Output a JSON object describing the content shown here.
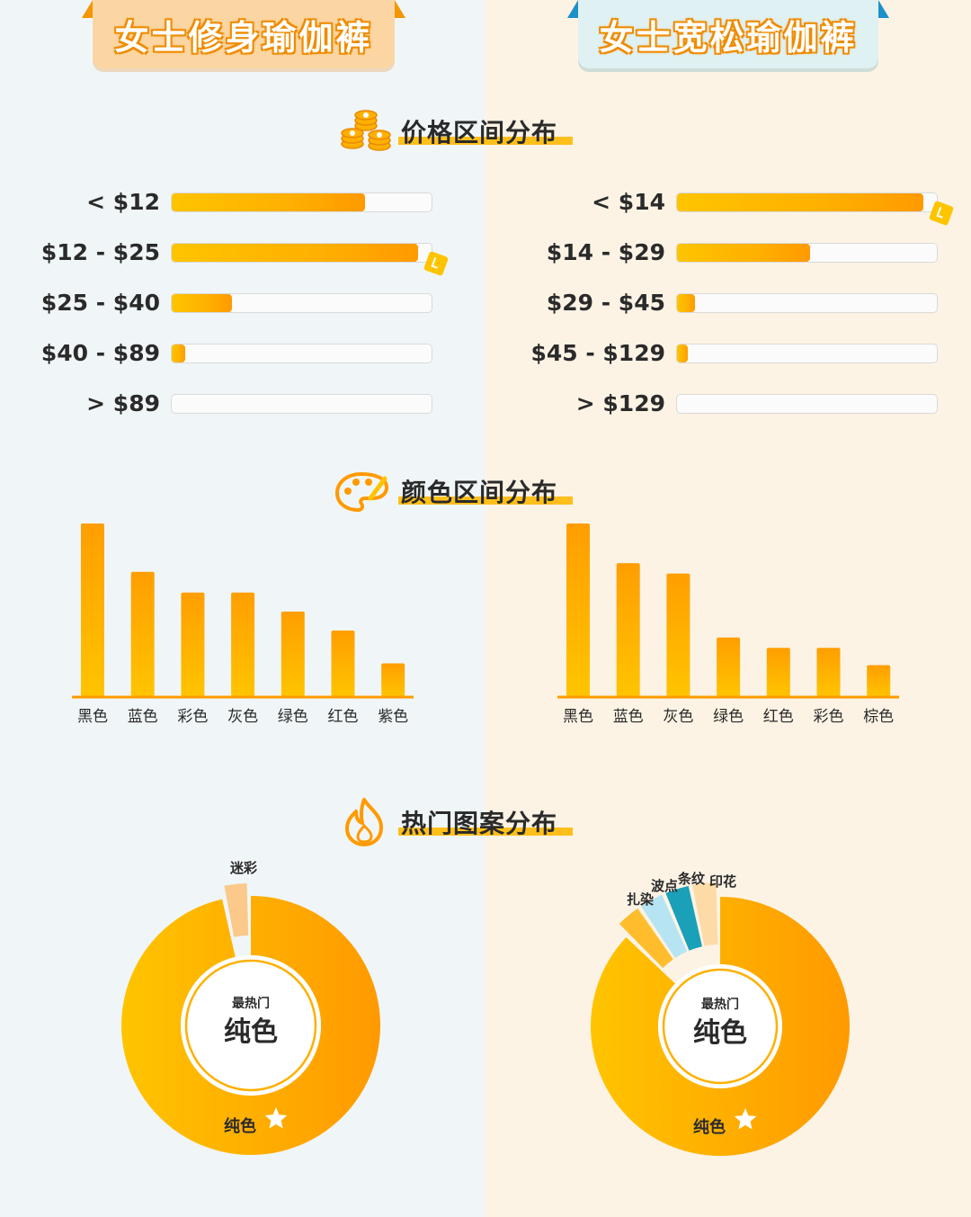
{
  "headers": {
    "left": "女士修身瑜伽裤",
    "right": "女士宽松瑜伽裤"
  },
  "sections": {
    "price": "价格区间分布",
    "color": "颜色区间分布",
    "pattern": "热门图案分布"
  },
  "icons": {
    "price": "coin-stack-icon",
    "color": "palette-icon",
    "pattern": "flame-icon",
    "top": "star-icon",
    "max": "check-badge-icon"
  },
  "colors": {
    "accent": "#ffb000",
    "accent_dark": "#ff9a00",
    "teal": "#1aa0b8",
    "light_blue": "#b7e4f2",
    "peach": "#fbd6a3",
    "text": "#2a2a2a"
  },
  "chart_data": [
    {
      "type": "bar",
      "orientation": "horizontal",
      "panel": "女士修身瑜伽裤",
      "categories": [
        "< $12",
        "$12 - $25",
        "$25 - $40",
        "$40 - $89",
        "> $89"
      ],
      "values": [
        74,
        94,
        23,
        5,
        0
      ]
    },
    {
      "type": "bar",
      "orientation": "horizontal",
      "panel": "女士宽松瑜伽裤",
      "categories": [
        "< $14",
        "$14 - $29",
        "$29 - $45",
        "$45 - $129",
        "> $129"
      ],
      "values": [
        94,
        51,
        7,
        4,
        0
      ]
    },
    {
      "type": "bar",
      "panel": "女士修身瑜伽裤",
      "categories": [
        "黑色",
        "蓝色",
        "彩色",
        "灰色",
        "绿色",
        "红色",
        "紫色"
      ],
      "values": [
        100,
        72,
        60,
        60,
        49,
        38,
        19
      ]
    },
    {
      "type": "bar",
      "panel": "女士宽松瑜伽裤",
      "categories": [
        "黑色",
        "蓝色",
        "灰色",
        "绿色",
        "红色",
        "彩色",
        "棕色"
      ],
      "values": [
        100,
        77,
        71,
        34,
        28,
        28,
        18
      ]
    },
    {
      "type": "pie",
      "panel": "女士修身瑜伽裤",
      "center_caption": "最热门",
      "center_value": "纯色",
      "slices": [
        {
          "label": "纯色",
          "value": 97
        },
        {
          "label": "迷彩",
          "value": 3
        }
      ]
    },
    {
      "type": "pie",
      "panel": "女士宽松瑜伽裤",
      "center_caption": "最热门",
      "center_value": "纯色",
      "slices": [
        {
          "label": "纯色",
          "value": 85
        },
        {
          "label": "扎染",
          "value": 3
        },
        {
          "label": "波点",
          "value": 3
        },
        {
          "label": "条纹",
          "value": 3
        },
        {
          "label": "印花",
          "value": 3
        }
      ]
    }
  ]
}
